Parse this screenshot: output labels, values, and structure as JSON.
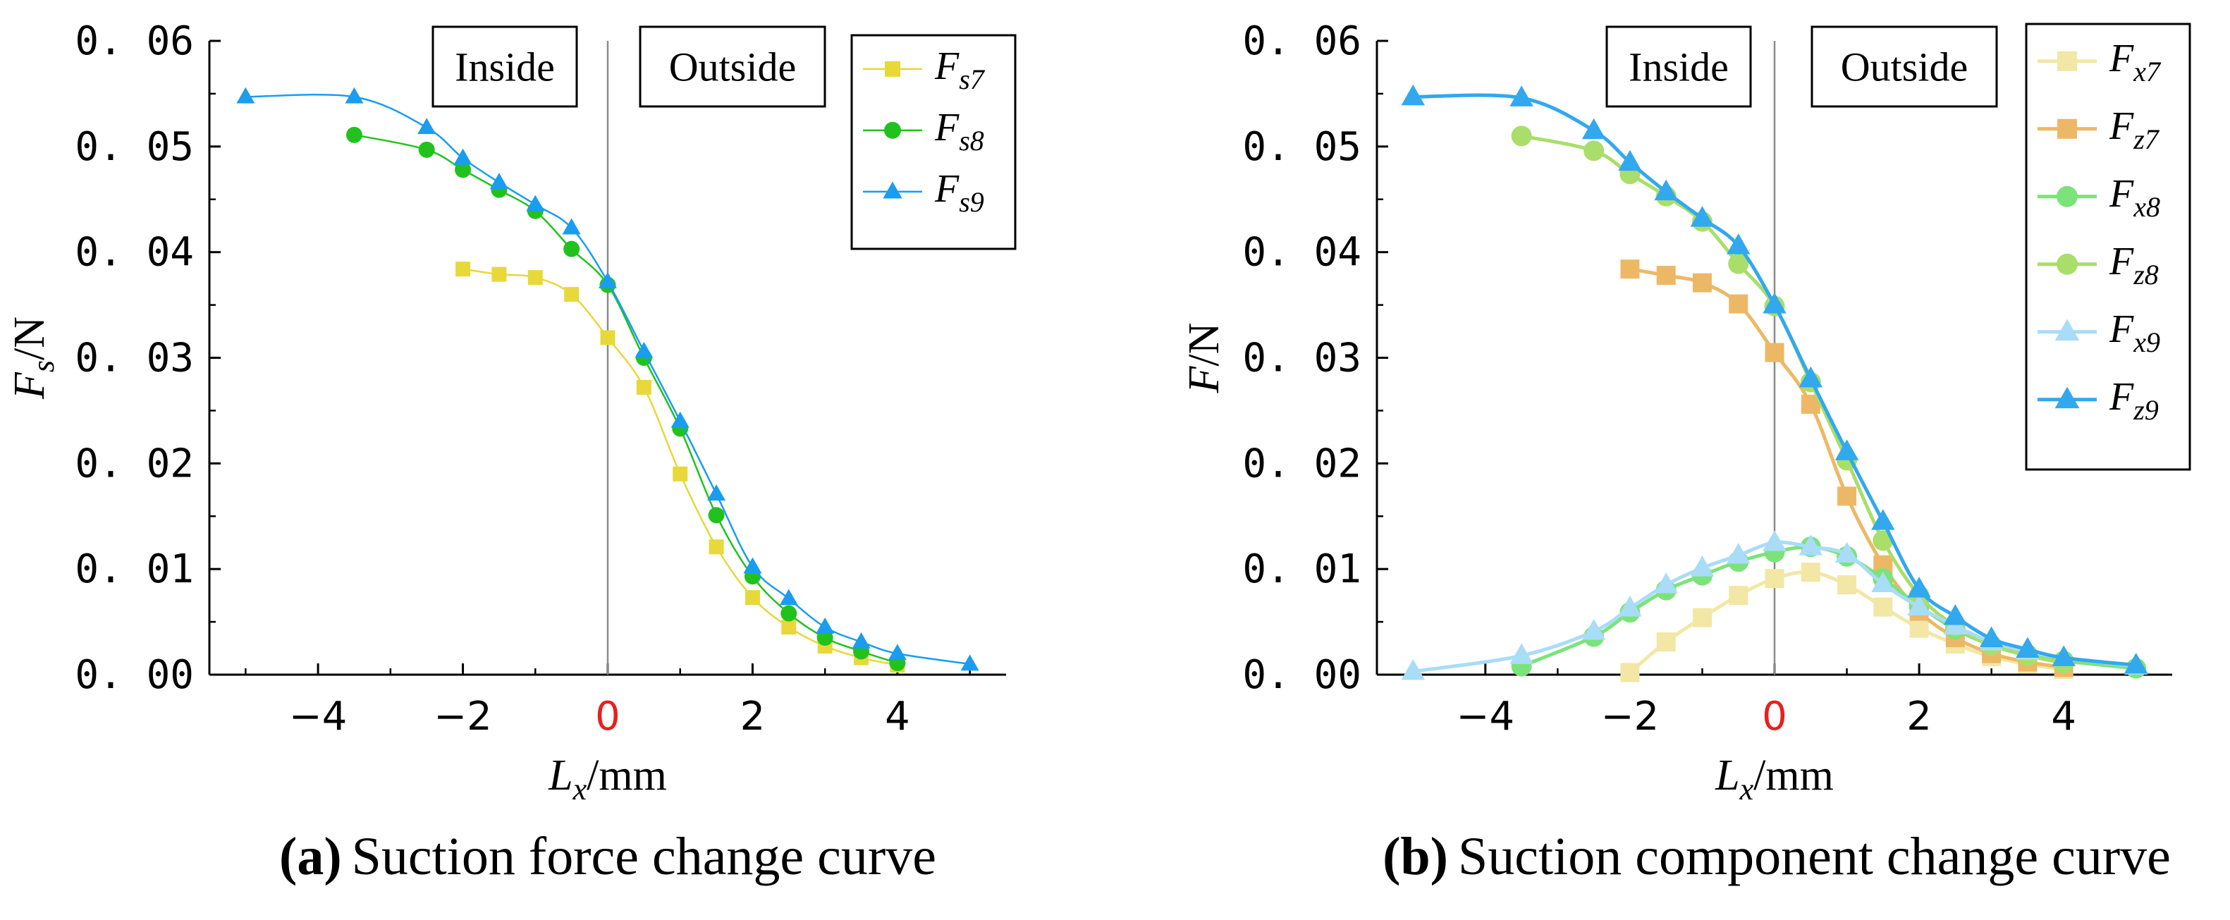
{
  "chart_data": [
    {
      "type": "line",
      "panel": "a",
      "caption_letter": "(a)",
      "caption_text": "Suction force change curve",
      "xlabel": "L",
      "xlabel_sub": "x",
      "xlabel_unit": "/mm",
      "ylabel": "F",
      "ylabel_sub": "s",
      "ylabel_unit": "/N",
      "xlim": [
        -5.5,
        5.5
      ],
      "ylim": [
        0,
        0.06
      ],
      "x_ticks": [
        -4,
        -2,
        0,
        2,
        4
      ],
      "x_tick_labels": [
        "−4",
        "−2",
        "0",
        "2",
        "4"
      ],
      "y_ticks": [
        0,
        0.01,
        0.02,
        0.03,
        0.04,
        0.05,
        0.06
      ],
      "y_tick_labels": [
        "0. 00",
        "0. 01",
        "0. 02",
        "0. 03",
        "0. 04",
        "0. 05",
        "0. 06"
      ],
      "zero_tick_color": "#e8201c",
      "region_labels": [
        "Inside",
        "Outside"
      ],
      "legend_position": "top-right",
      "series": [
        {
          "name": "F",
          "sub": "s7",
          "color": "#e8d83a",
          "marker": "square",
          "x": [
            -2,
            -1.5,
            -1,
            -0.5,
            0,
            0.5,
            1,
            1.5,
            2,
            2.5,
            3,
            3.5,
            4
          ],
          "y": [
            0.0384,
            0.0379,
            0.0376,
            0.036,
            0.0319,
            0.0272,
            0.019,
            0.0121,
            0.0073,
            0.0045,
            0.0027,
            0.0016,
            0.0009
          ]
        },
        {
          "name": "F",
          "sub": "s8",
          "color": "#22c21e",
          "marker": "circle",
          "x": [
            -3.5,
            -2.5,
            -2,
            -1.5,
            -1,
            -0.5,
            0,
            0.5,
            1,
            1.5,
            2,
            2.5,
            3,
            3.5,
            4
          ],
          "y": [
            0.0511,
            0.0497,
            0.0478,
            0.0459,
            0.0439,
            0.0403,
            0.0369,
            0.03,
            0.0233,
            0.0151,
            0.0093,
            0.0058,
            0.0035,
            0.0022,
            0.0011
          ]
        },
        {
          "name": "F",
          "sub": "s9",
          "color": "#1a9cf0",
          "marker": "triangle",
          "x": [
            -5,
            -3.5,
            -2.5,
            -2,
            -1.5,
            -1,
            -0.5,
            0,
            0.5,
            1,
            1.5,
            2,
            2.5,
            3,
            3.5,
            4,
            5
          ],
          "y": [
            0.0547,
            0.0547,
            0.0518,
            0.0489,
            0.0466,
            0.0445,
            0.0423,
            0.0372,
            0.0306,
            0.024,
            0.0171,
            0.0102,
            0.0072,
            0.0045,
            0.0031,
            0.002,
            0.001
          ]
        }
      ]
    },
    {
      "type": "line",
      "panel": "b",
      "caption_letter": "(b)",
      "caption_text": "Suction component change curve",
      "xlabel": "L",
      "xlabel_sub": "x",
      "xlabel_unit": "/mm",
      "ylabel": "F",
      "ylabel_sub": "",
      "ylabel_unit": "/N",
      "xlim": [
        -5.5,
        5.5
      ],
      "ylim": [
        0,
        0.06
      ],
      "x_ticks": [
        -4,
        -2,
        0,
        2,
        4
      ],
      "x_tick_labels": [
        "−4",
        "−2",
        "0",
        "2",
        "4"
      ],
      "y_ticks": [
        0,
        0.01,
        0.02,
        0.03,
        0.04,
        0.05,
        0.06
      ],
      "y_tick_labels": [
        "0. 00",
        "0. 01",
        "0. 02",
        "0. 03",
        "0. 04",
        "0. 05",
        "0. 06"
      ],
      "zero_tick_color": "#e8201c",
      "region_labels": [
        "Inside",
        "Outside"
      ],
      "legend_position": "top-right",
      "series": [
        {
          "name": "F",
          "sub": "x7",
          "color": "#f2e7a4",
          "marker": "square",
          "x": [
            -2,
            -1.5,
            -1,
            -0.5,
            0,
            0.5,
            1,
            1.5,
            2,
            2.5,
            3,
            3.5,
            4
          ],
          "y": [
            0.0002,
            0.0031,
            0.0054,
            0.0075,
            0.0091,
            0.0097,
            0.0085,
            0.0064,
            0.0044,
            0.0029,
            0.0017,
            0.001,
            0.0005
          ]
        },
        {
          "name": "F",
          "sub": "z7",
          "color": "#edb865",
          "marker": "square",
          "x": [
            -2,
            -1.5,
            -1,
            -0.5,
            0,
            0.5,
            1,
            1.5,
            2,
            2.5,
            3,
            3.5,
            4
          ],
          "y": [
            0.0384,
            0.0378,
            0.0371,
            0.0351,
            0.0305,
            0.0256,
            0.0169,
            0.0104,
            0.006,
            0.0035,
            0.002,
            0.0012,
            0.0007
          ]
        },
        {
          "name": "F",
          "sub": "x8",
          "color": "#7be37a",
          "marker": "circle",
          "x": [
            -3.5,
            -2.5,
            -2,
            -1.5,
            -1,
            -0.5,
            0,
            0.5,
            1,
            1.5,
            2,
            2.5,
            3,
            3.5,
            4,
            5
          ],
          "y": [
            0.0008,
            0.0036,
            0.0059,
            0.008,
            0.0094,
            0.0107,
            0.0116,
            0.0121,
            0.0112,
            0.0091,
            0.0065,
            0.0043,
            0.0028,
            0.0019,
            0.0013,
            0.0006
          ]
        },
        {
          "name": "F",
          "sub": "z8",
          "color": "#a9de6a",
          "marker": "circle",
          "x": [
            -3.5,
            -2.5,
            -2,
            -1.5,
            -1,
            -0.5,
            0,
            0.5,
            1,
            1.5,
            2,
            2.5,
            3,
            3.5,
            4
          ],
          "y": [
            0.051,
            0.0496,
            0.0474,
            0.0453,
            0.0429,
            0.0389,
            0.0349,
            0.0277,
            0.0203,
            0.0127,
            0.0075,
            0.0046,
            0.0028,
            0.0018,
            0.0011
          ]
        },
        {
          "name": "F",
          "sub": "x9",
          "color": "#a9dcf7",
          "marker": "triangle",
          "x": [
            -5,
            -3.5,
            -2.5,
            -2,
            -1.5,
            -1,
            -0.5,
            0,
            0.5,
            1,
            1.5,
            2,
            2.5,
            3,
            3.5,
            4,
            5
          ],
          "y": [
            0.0003,
            0.0018,
            0.0041,
            0.0063,
            0.0085,
            0.0101,
            0.0113,
            0.0125,
            0.0121,
            0.0114,
            0.0086,
            0.0064,
            0.0046,
            0.0031,
            0.0022,
            0.0016,
            0.0008
          ]
        },
        {
          "name": "F",
          "sub": "z9",
          "color": "#32a8ee",
          "marker": "triangle",
          "x": [
            -5,
            -3.5,
            -2.5,
            -2,
            -1.5,
            -1,
            -0.5,
            0,
            0.5,
            1,
            1.5,
            2,
            2.5,
            3,
            3.5,
            4,
            5
          ],
          "y": [
            0.0547,
            0.0546,
            0.0515,
            0.0485,
            0.0457,
            0.0432,
            0.0406,
            0.035,
            0.028,
            0.0211,
            0.0145,
            0.0081,
            0.0055,
            0.0034,
            0.0024,
            0.0016,
            0.0009
          ]
        }
      ]
    }
  ]
}
